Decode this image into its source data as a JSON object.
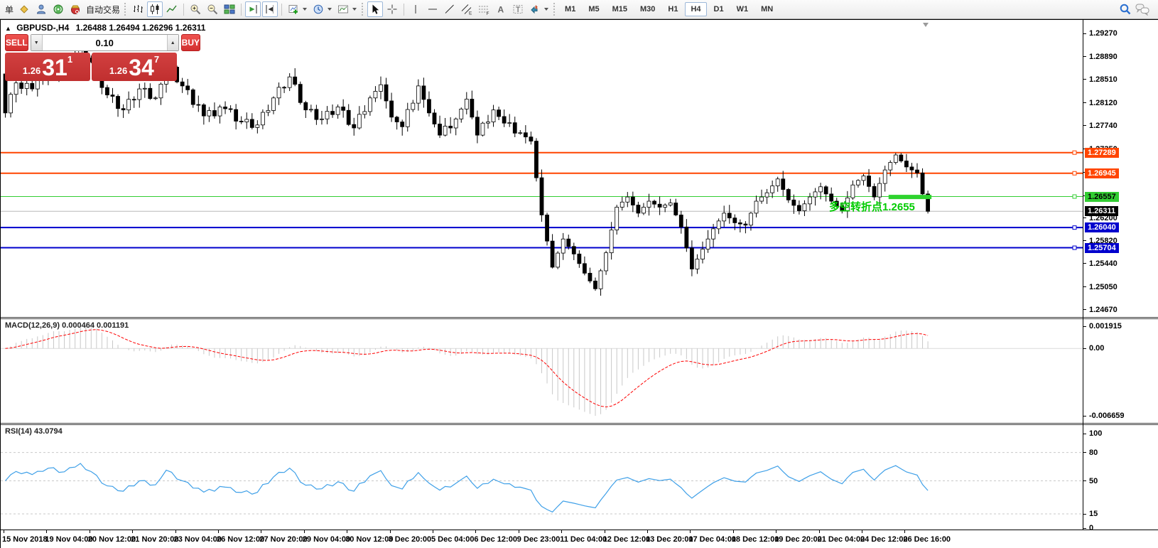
{
  "toolbar": {
    "order_text": "单",
    "autotrading_label": "自动交易",
    "timeframes": [
      "M1",
      "M5",
      "M15",
      "M30",
      "H1",
      "H4",
      "D1",
      "W1",
      "MN"
    ],
    "active_timeframe": "H4",
    "glyphs": {
      "text_tool": "A",
      "text_label_tool": "T",
      "channel_tool": "E",
      "fibonacci_tool": "F"
    }
  },
  "chart_window": {
    "title_symbol": "GBPUSD-,H4",
    "title_ohlc": "1.26488 1.26494 1.26296 1.26311",
    "annotation": {
      "text": "多空转折点1.2655",
      "color": "#00CC00"
    }
  },
  "trade_panel": {
    "sell_label": "SELL",
    "buy_label": "BUY",
    "volume": "0.10",
    "sell": {
      "prefix": "1.26",
      "big": "31",
      "sup": "1"
    },
    "buy": {
      "prefix": "1.26",
      "big": "34",
      "sup": "7"
    }
  },
  "price_axis": {
    "ticks": [
      "1.29270",
      "1.28890",
      "1.28510",
      "1.28120",
      "1.27740",
      "1.27350",
      "1.26960",
      "1.26570",
      "1.26200",
      "1.25820",
      "1.25440",
      "1.25050",
      "1.24670"
    ]
  },
  "macd_panel": {
    "label": "MACD(12,26,9) 0.000464 0.001191"
  },
  "rsi_panel": {
    "label": "RSI(14) 43.0794"
  },
  "time_axis": {
    "labels": [
      "15 Nov 2018",
      "19 Nov 04:00",
      "20 Nov 12:00",
      "21 Nov 20:00",
      "23 Nov 04:00",
      "26 Nov 12:00",
      "27 Nov 20:00",
      "29 Nov 04:00",
      "30 Nov 12:00",
      "3 Dec 20:00",
      "5 Dec 04:00",
      "6 Dec 12:00",
      "9 Dec 23:00",
      "11 Dec 04:00",
      "12 Dec 12:00",
      "13 Dec 20:00",
      "17 Dec 04:00",
      "18 Dec 12:00",
      "19 Dec 20:00",
      "21 Dec 04:00",
      "24 Dec 12:00",
      "26 Dec 16:00"
    ]
  },
  "chart_data": {
    "type": "candlestick",
    "symbol": "GBPUSD-",
    "timeframe": "H4",
    "current_ohlc": {
      "open": 1.26488,
      "high": 1.26494,
      "low": 1.26296,
      "close": 1.26311
    },
    "ylim": [
      1.2455,
      1.295
    ],
    "first_open": 1.286,
    "closes": [
      1.2795,
      1.2826,
      1.2845,
      1.28357,
      1.28443,
      1.2835,
      1.28527,
      1.28523,
      1.287,
      1.28727,
      1.28573,
      1.286,
      1.2881,
      1.2884,
      1.2905,
      1.28865,
      1.288,
      1.28677,
      1.28373,
      1.2825,
      1.28227,
      1.28023,
      1.28,
      1.28177,
      1.28173,
      1.2835,
      1.2836,
      1.2819,
      1.282,
      1.2843,
      1.2878,
      1.28713,
      1.28467,
      1.284,
      1.28335,
      1.2809,
      1.28085,
      1.279,
      1.2799,
      1.279,
      1.2805,
      1.2802,
      1.28007,
      1.27813,
      1.278,
      1.27843,
      1.27707,
      1.2775,
      1.2796,
      1.2799,
      1.282,
      1.28377,
      1.28373,
      1.2855,
      1.28427,
      1.28123,
      1.28,
      1.2801,
      1.2784,
      1.2785,
      1.27977,
      1.27923,
      1.2805,
      1.27993,
      1.27757,
      1.277,
      1.27927,
      1.27973,
      1.282,
      1.2831,
      1.2842,
      1.2815,
      1.2788,
      1.278,
      1.2772,
      1.28007,
      1.28113,
      1.284,
      1.28175,
      1.2795,
      1.27765,
      1.2758,
      1.2773,
      1.277,
      1.2785,
      1.28015,
      1.2818,
      1.2788,
      1.2758,
      1.2778,
      1.278,
      1.28,
      1.2789,
      1.2778,
      1.27787,
      1.27613,
      1.2762,
      1.2755,
      1.2748,
      1.2687,
      1.2625,
      1.25815,
      1.2538,
      1.25615,
      1.2585,
      1.25725,
      1.256,
      1.2544,
      1.2528,
      1.2515,
      1.2502,
      1.2532,
      1.2562,
      1.26,
      1.2638,
      1.26465,
      1.2655,
      1.26415,
      1.2628,
      1.2638,
      1.2648,
      1.2643,
      1.2638,
      1.26415,
      1.2645,
      1.2625,
      1.2605,
      1.257,
      1.2535,
      1.25515,
      1.2568,
      1.2585,
      1.2602,
      1.2615,
      1.2628,
      1.262,
      1.2612,
      1.261,
      1.2608,
      1.2628,
      1.2648,
      1.2655,
      1.2662,
      1.26735,
      1.2685,
      1.26675,
      1.265,
      1.2641,
      1.2632,
      1.26435,
      1.2655,
      1.26635,
      1.2672,
      1.266,
      1.2648,
      1.264,
      1.2632,
      1.26535,
      1.2675,
      1.26825,
      1.269,
      1.26725,
      1.2655,
      1.26775,
      1.27,
      1.27125,
      1.2725,
      1.2715,
      1.2705,
      1.27,
      1.2695,
      1.266,
      1.26311
    ],
    "levels": [
      {
        "price": 1.27289,
        "label": "1.27289",
        "color": "#FF4500",
        "width": 2,
        "label_fg": "#FFFFFF"
      },
      {
        "price": 1.26945,
        "label": "1.26945",
        "color": "#FF4500",
        "width": 2,
        "label_fg": "#FFFFFF"
      },
      {
        "price": 1.26557,
        "label": "1.26557",
        "color": "#32CD32",
        "width": 1,
        "label_fg": "#000000"
      },
      {
        "price": 1.2604,
        "label": "1.26040",
        "color": "#0000CD",
        "width": 2,
        "label_fg": "#FFFFFF"
      },
      {
        "price": 1.25704,
        "label": "1.25704",
        "color": "#0000CD",
        "width": 2,
        "label_fg": "#FFFFFF"
      }
    ],
    "current_price": {
      "price": 1.26311,
      "label": "1.26311",
      "line_color": "#B8B8B8",
      "label_bg": "#000000",
      "label_fg": "#FFFFFF"
    },
    "highlight_segment": {
      "start_index": 165,
      "end_index": 173,
      "price": 1.2655,
      "color": "#2ED32E"
    },
    "indicators": {
      "macd": {
        "fast": 12,
        "slow": 26,
        "signal": 9,
        "value_main": 0.000464,
        "value_signal": 0.001191,
        "hist_color": "#C8C8C8",
        "signal_color": "#FF0000",
        "axis_max": "0.001915",
        "axis_zero": "0.00",
        "axis_min": "-0.006659"
      },
      "rsi": {
        "period": 14,
        "value": 43.0794,
        "color": "#3FA0E8",
        "levels": [
          80,
          50,
          15
        ],
        "axis_labels": [
          "100",
          "80",
          "50",
          "15",
          "0"
        ]
      }
    }
  }
}
